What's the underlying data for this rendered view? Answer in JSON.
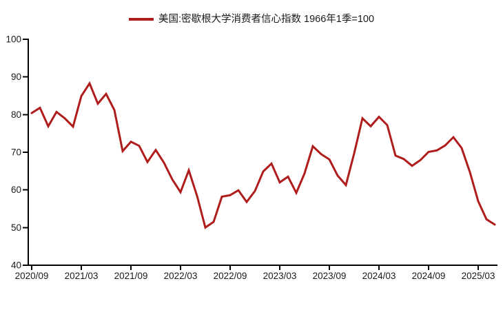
{
  "chart_data": {
    "type": "line",
    "title": "",
    "legend_position": "top-center",
    "grid": false,
    "background": "#ffffff",
    "axis_color": "#000000",
    "text_color": "#1a1a1a",
    "ylim": [
      40,
      100
    ],
    "y_ticks": [
      40,
      50,
      60,
      70,
      80,
      90,
      100
    ],
    "x_tick_labels": [
      "2020/09",
      "2021/03",
      "2021/09",
      "2022/03",
      "2022/09",
      "2023/03",
      "2023/09",
      "2024/03",
      "2024/09",
      "2025/03"
    ],
    "x": [
      "2020/09",
      "2020/10",
      "2020/11",
      "2020/12",
      "2021/01",
      "2021/02",
      "2021/03",
      "2021/04",
      "2021/05",
      "2021/06",
      "2021/07",
      "2021/08",
      "2021/09",
      "2021/10",
      "2021/11",
      "2021/12",
      "2022/01",
      "2022/02",
      "2022/03",
      "2022/04",
      "2022/05",
      "2022/06",
      "2022/07",
      "2022/08",
      "2022/09",
      "2022/10",
      "2022/11",
      "2022/12",
      "2023/01",
      "2023/02",
      "2023/03",
      "2023/04",
      "2023/05",
      "2023/06",
      "2023/07",
      "2023/08",
      "2023/09",
      "2023/10",
      "2023/11",
      "2023/12",
      "2024/01",
      "2024/02",
      "2024/03",
      "2024/04",
      "2024/05",
      "2024/06",
      "2024/07",
      "2024/08",
      "2024/09",
      "2024/10",
      "2024/11",
      "2024/12",
      "2025/01",
      "2025/02",
      "2025/03",
      "2025/04",
      "2025/05"
    ],
    "series": [
      {
        "name": "美国:密歇根大学消费者信心指数 1966年1季=100",
        "color": "#b01c1c",
        "values": [
          80.4,
          81.8,
          76.9,
          80.7,
          79.0,
          76.8,
          84.9,
          88.3,
          82.9,
          85.5,
          81.2,
          70.3,
          72.8,
          71.7,
          67.4,
          70.6,
          67.2,
          62.8,
          59.4,
          65.2,
          58.4,
          50.0,
          51.5,
          58.2,
          58.6,
          59.9,
          56.8,
          59.7,
          64.9,
          67.0,
          62.0,
          63.5,
          59.2,
          64.4,
          71.6,
          69.5,
          68.1,
          63.8,
          61.3,
          69.7,
          79.0,
          76.9,
          79.4,
          77.2,
          69.1,
          68.2,
          66.4,
          67.9,
          70.1,
          70.5,
          71.8,
          74.0,
          71.1,
          64.7,
          57.0,
          52.2,
          50.8
        ]
      }
    ]
  }
}
